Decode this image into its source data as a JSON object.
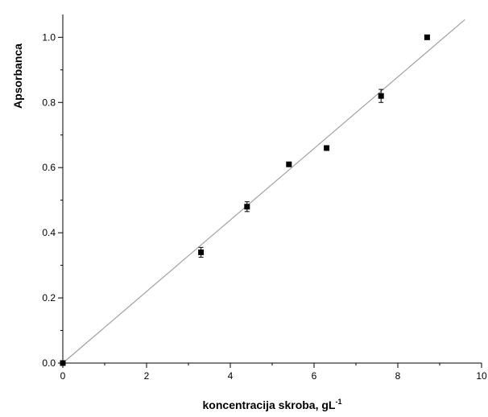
{
  "chart_data": {
    "type": "scatter",
    "title": "",
    "xlabel": "koncentracija skroba, gL",
    "xlabel_superscript": "-1",
    "ylabel": "Apsorbanca",
    "xlim": [
      0,
      10
    ],
    "ylim": [
      0,
      1.07
    ],
    "x_ticks": [
      0,
      2,
      4,
      6,
      8,
      10
    ],
    "x_tick_labels": [
      "0",
      "2",
      "4",
      "6",
      "8",
      "10"
    ],
    "y_ticks": [
      0,
      0.2,
      0.4,
      0.6,
      0.8,
      1.0
    ],
    "y_tick_labels": [
      "0.0",
      "0.2",
      "0.4",
      "0.6",
      "0.8",
      "1.0"
    ],
    "grid": false,
    "legend": "none",
    "series": [
      {
        "points": [
          {
            "x": 0,
            "y": 0.0,
            "err": 0
          },
          {
            "x": 3.3,
            "y": 0.34,
            "err": 0.015
          },
          {
            "x": 4.4,
            "y": 0.48,
            "err": 0.015
          },
          {
            "x": 5.4,
            "y": 0.61,
            "err": 0
          },
          {
            "x": 6.3,
            "y": 0.66,
            "err": 0
          },
          {
            "x": 7.6,
            "y": 0.82,
            "err": 0.02
          },
          {
            "x": 8.7,
            "y": 1.0,
            "err": 0
          }
        ]
      }
    ],
    "fit_line": {
      "x": [
        0,
        9.6
      ],
      "y": [
        0,
        1.054
      ]
    },
    "colors": {
      "marker": "#000000",
      "fit_line": "#a0a0a0",
      "axis": "#000000"
    }
  }
}
